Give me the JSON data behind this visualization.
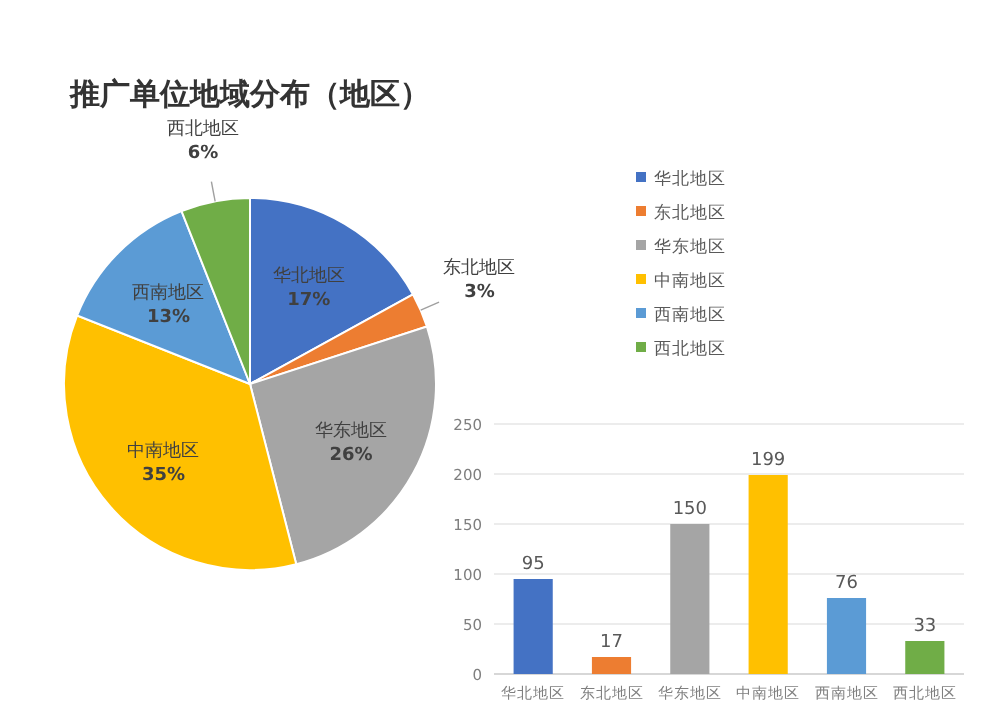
{
  "chart_data": [
    {
      "type": "pie",
      "title": "推广单位地域分布（地区）",
      "categories": [
        "华北地区",
        "东北地区",
        "华东地区",
        "中南地区",
        "西南地区",
        "西北地区"
      ],
      "values": [
        17,
        3,
        26,
        35,
        13,
        6
      ],
      "colors": [
        "#4472c4",
        "#ed7d31",
        "#a5a5a5",
        "#ffc000",
        "#5b9bd5",
        "#70ad47"
      ],
      "value_labels": [
        "17%",
        "3%",
        "26%",
        "35%",
        "13%",
        "6%"
      ],
      "legend": "right"
    },
    {
      "type": "bar",
      "categories": [
        "华北地区",
        "东北地区",
        "华东地区",
        "中南地区",
        "西南地区",
        "西北地区"
      ],
      "values": [
        95,
        17,
        150,
        199,
        76,
        33
      ],
      "colors": [
        "#4472c4",
        "#ed7d31",
        "#a5a5a5",
        "#ffc000",
        "#5b9bd5",
        "#70ad47"
      ],
      "ylim": [
        0,
        250
      ],
      "yticks": [
        0,
        50,
        100,
        150,
        200,
        250
      ],
      "grid": "y",
      "data_labels": true
    }
  ]
}
